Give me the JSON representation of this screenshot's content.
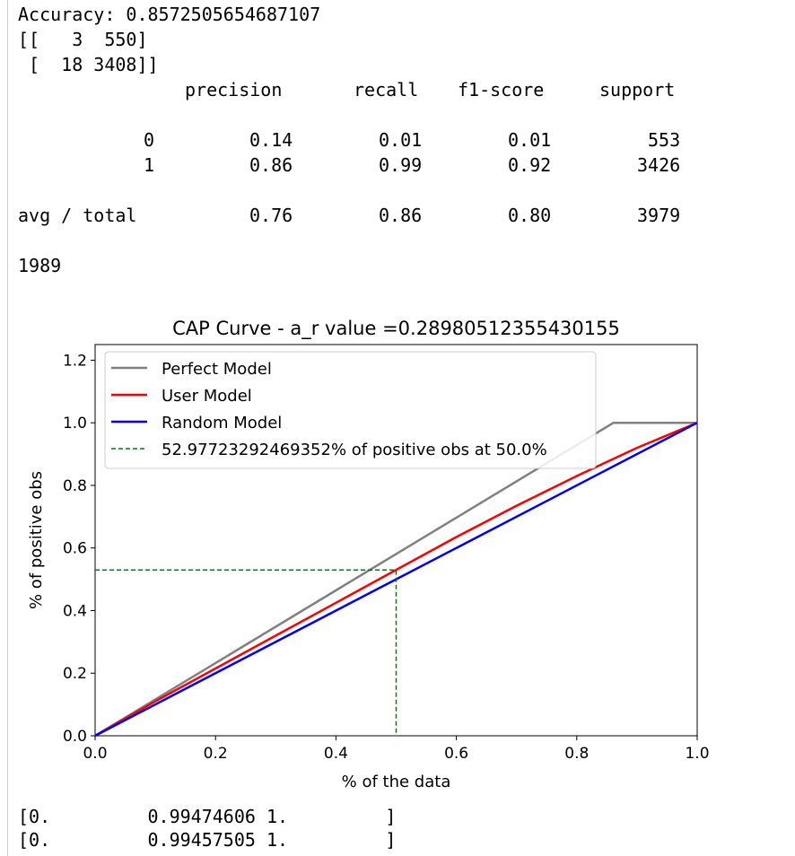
{
  "output": {
    "accuracy_line": "Accuracy: 0.8572505654687107",
    "cm_line_1": "[[   3  550]",
    "cm_line_2": " [  18 3408]]",
    "report": {
      "headers": [
        "precision",
        "recall",
        "f1-score",
        "support"
      ],
      "rows": [
        {
          "label": "0",
          "values": [
            "0.14",
            "0.01",
            "0.01",
            "553"
          ]
        },
        {
          "label": "1",
          "values": [
            "0.86",
            "0.99",
            "0.92",
            "3426"
          ]
        },
        {
          "label": "avg / total",
          "values": [
            "0.76",
            "0.86",
            "0.80",
            "3979"
          ]
        }
      ]
    },
    "count_line": "1989",
    "array_line_1": "[0.         0.99474606 1.         ]",
    "array_line_2": "[0.         0.99457505 1.         ]"
  },
  "chart_data": {
    "type": "line",
    "title": "CAP Curve - a_r value =0.28980512355430155",
    "xlabel": "% of the data",
    "ylabel": "% of positive obs",
    "xlim": [
      0.0,
      1.0
    ],
    "ylim": [
      0.0,
      1.25
    ],
    "xticks": [
      0.0,
      0.2,
      0.4,
      0.6,
      0.8,
      1.0
    ],
    "xtick_labels": [
      "0.0",
      "0.2",
      "0.4",
      "0.6",
      "0.8",
      "1.0"
    ],
    "yticks": [
      0.0,
      0.2,
      0.4,
      0.6,
      0.8,
      1.0,
      1.2
    ],
    "ytick_labels": [
      "0.0",
      "0.2",
      "0.4",
      "0.6",
      "0.8",
      "1.0",
      "1.2"
    ],
    "legend_position": "top-left",
    "grid": false,
    "series": [
      {
        "name": "Perfect Model",
        "color": "#808080",
        "style": "solid",
        "x": [
          0.0,
          0.861,
          1.0
        ],
        "y": [
          0.0,
          1.0,
          1.0
        ]
      },
      {
        "name": "User Model",
        "color": "#ff0000",
        "style": "solid",
        "x": [
          0.0,
          0.1,
          0.2,
          0.3,
          0.4,
          0.5,
          0.6,
          0.7,
          0.8,
          0.9,
          1.0
        ],
        "y": [
          0.0,
          0.11,
          0.215,
          0.32,
          0.425,
          0.53,
          0.635,
          0.735,
          0.83,
          0.92,
          1.0
        ]
      },
      {
        "name": "Random Model",
        "color": "#0000ff",
        "style": "solid",
        "x": [
          0.0,
          1.0
        ],
        "y": [
          0.0,
          1.0
        ]
      },
      {
        "name": "52.97723292469352% of positive obs at 50.0%",
        "color": "#008000",
        "style": "dashed",
        "x": [
          0.0,
          0.5,
          0.5
        ],
        "y": [
          0.5298,
          0.5298,
          0.0
        ]
      }
    ]
  }
}
